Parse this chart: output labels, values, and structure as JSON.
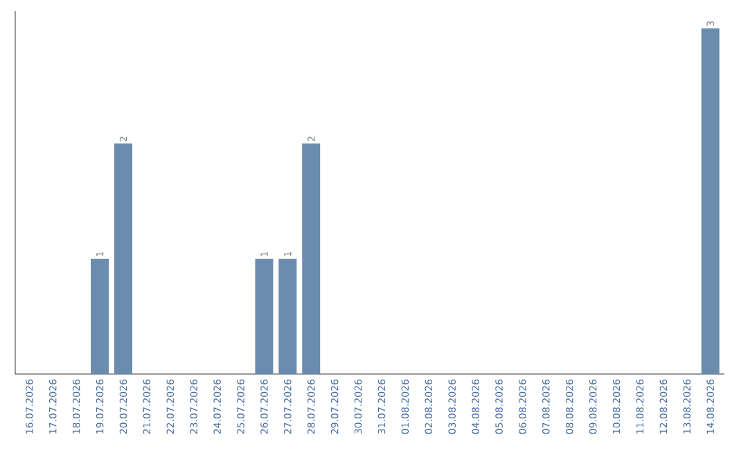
{
  "chart_data": {
    "type": "bar",
    "categories": [
      "16.07.2026",
      "17.07.2026",
      "18.07.2026",
      "19.07.2026",
      "20.07.2026",
      "21.07.2026",
      "22.07.2026",
      "23.07.2026",
      "24.07.2026",
      "25.07.2026",
      "26.07.2026",
      "27.07.2026",
      "28.07.2026",
      "29.07.2026",
      "30.07.2026",
      "31.07.2026",
      "01.08.2026",
      "02.08.2026",
      "03.08.2026",
      "04.08.2026",
      "05.08.2026",
      "06.08.2026",
      "07.08.2026",
      "08.08.2026",
      "09.08.2026",
      "10.08.2026",
      "11.08.2026",
      "12.08.2026",
      "13.08.2026",
      "14.08.2026"
    ],
    "values": [
      0,
      0,
      0,
      1,
      2,
      0,
      0,
      0,
      0,
      0,
      1,
      1,
      2,
      0,
      0,
      0,
      0,
      0,
      0,
      0,
      0,
      0,
      0,
      0,
      0,
      0,
      0,
      0,
      0,
      3
    ],
    "value_labels": [
      null,
      null,
      null,
      "1",
      "2",
      null,
      null,
      null,
      null,
      null,
      "1",
      "1",
      "2",
      null,
      null,
      null,
      null,
      null,
      null,
      null,
      null,
      null,
      null,
      null,
      null,
      null,
      null,
      null,
      null,
      "3"
    ],
    "color": "#6a8cad",
    "grid": false,
    "legend": false
  }
}
